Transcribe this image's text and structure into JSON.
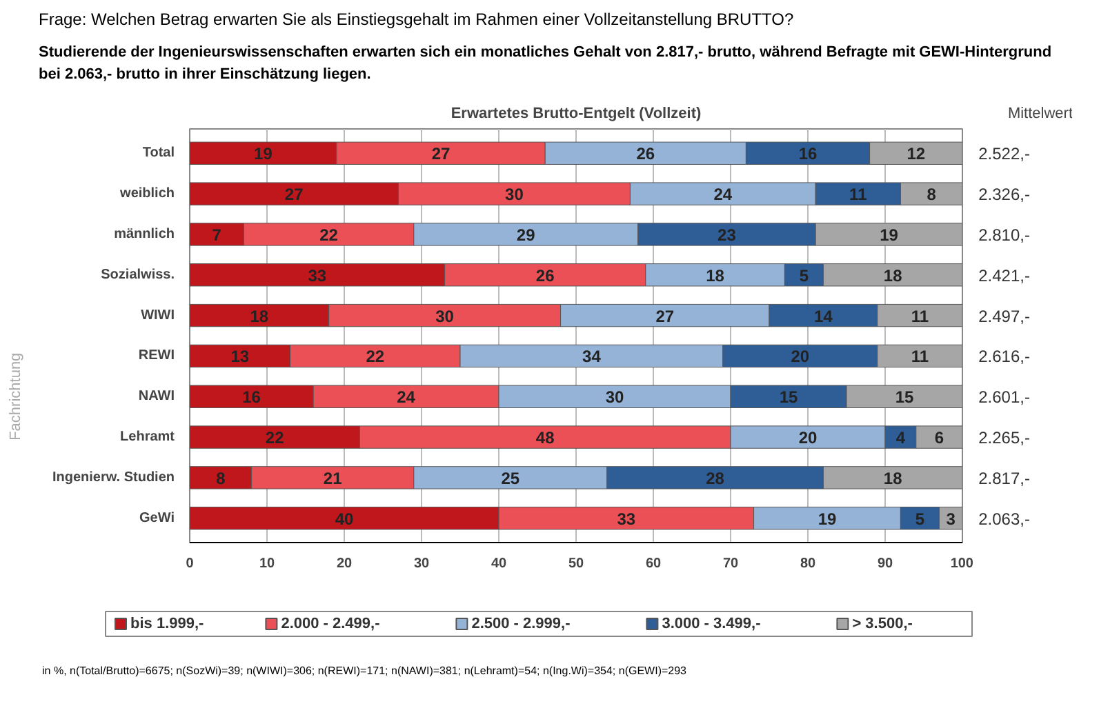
{
  "chart_data": {
    "type": "bar",
    "orientation": "horizontal",
    "stacked": true,
    "title": "Frage: Welchen Betrag erwarten Sie als Einstiegsgehalt im Rahmen einer Vollzeitanstellung BRUTTO?",
    "subtitle": "Studierende der Ingenieurswissenschaften erwarten sich ein monatliches Gehalt von 2.817,- brutto, während Befragte mit GEWI-Hintergrund bei 2.063,- brutto in ihrer Einschätzung liegen.",
    "categories": [
      "Total",
      "weiblich",
      "männlich",
      "Sozialwiss.",
      "WIWI",
      "REWI",
      "NAWI",
      "Lehramt",
      "Ingenierw. Studien",
      "GeWi"
    ],
    "series": [
      {
        "name": "bis 1.999,-",
        "color": "#c0171c",
        "values": [
          19,
          27,
          7,
          33,
          18,
          13,
          16,
          22,
          8,
          40
        ]
      },
      {
        "name": "2.000 - 2.499,-",
        "color": "#ea5055",
        "values": [
          27,
          30,
          22,
          26,
          30,
          22,
          24,
          48,
          21,
          33
        ]
      },
      {
        "name": "2.500 - 2.999,-",
        "color": "#95b3d7",
        "values": [
          26,
          24,
          29,
          18,
          27,
          34,
          30,
          20,
          25,
          19
        ]
      },
      {
        "name": "3.000 - 3.499,-",
        "color": "#2f5d95",
        "values": [
          16,
          11,
          23,
          5,
          14,
          20,
          15,
          4,
          28,
          5
        ]
      },
      {
        "name": "> 3.500,-",
        "color": "#a6a6a6",
        "values": [
          12,
          8,
          19,
          18,
          11,
          11,
          15,
          6,
          18,
          3
        ]
      }
    ],
    "xlim": [
      0,
      100
    ],
    "xticks": [
      0,
      10,
      20,
      30,
      40,
      50,
      60,
      70,
      80,
      90,
      100
    ],
    "grid": "x",
    "legend": "bottom",
    "data_labels": true,
    "annotations": [
      "Erwartetes Brutto-Entgelt (Vollzeit)",
      "Mittelwert",
      "Fachrichtung",
      "in %, n(Total/Brutto)=6675; n(SozWi)=39; n(WIWI)=306; n(REWI)=171; n(NAWI)=381; n(Lehramt)=54; n(Ing.Wi)=354; n(GEWI)=293",
      "2.522,-",
      "2.326,-",
      "2.810,-",
      "2.421,-",
      "2.497,-",
      "2.616,-",
      "2.601,-",
      "2.265,-",
      "2.817,-",
      "2.063,-"
    ]
  }
}
